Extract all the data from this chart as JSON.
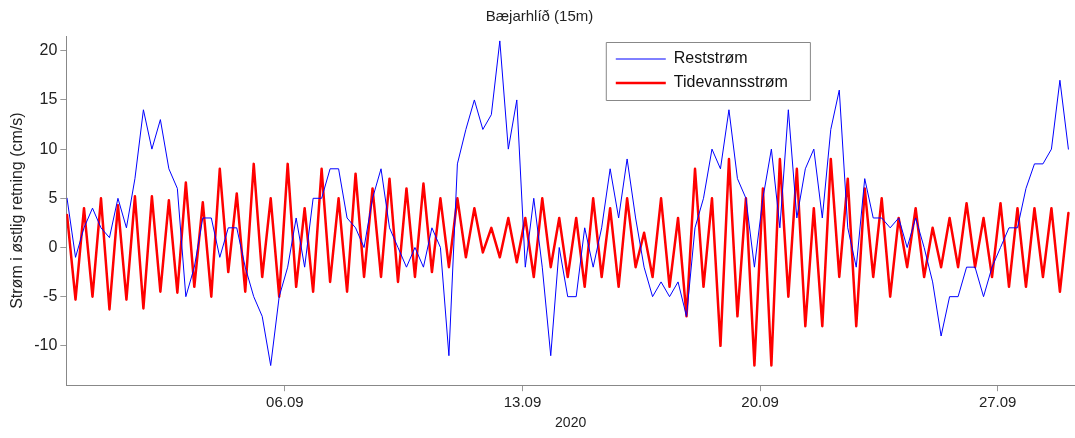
{
  "chart_data": {
    "type": "line",
    "title": "Bæjarhlíð (15m)",
    "xlabel": "2020",
    "ylabel": "Strøm i østlig retning (cm/s)",
    "x": [
      "2020-08-30T14:00",
      "2020-08-30T20:00",
      "2020-08-31T02:00",
      "2020-08-31T08:00",
      "2020-08-31T14:00",
      "2020-08-31T20:00",
      "2020-09-01T02:00",
      "2020-09-01T08:00",
      "2020-09-01T14:00",
      "2020-09-01T20:00",
      "2020-09-02T02:00",
      "2020-09-02T08:00",
      "2020-09-02T14:00",
      "2020-09-02T20:00",
      "2020-09-03T02:00",
      "2020-09-03T08:00",
      "2020-09-03T14:00",
      "2020-09-03T20:00",
      "2020-09-04T02:00",
      "2020-09-04T08:00",
      "2020-09-04T14:00",
      "2020-09-04T20:00",
      "2020-09-05T02:00",
      "2020-09-05T08:00",
      "2020-09-05T14:00",
      "2020-09-05T20:00",
      "2020-09-06T02:00",
      "2020-09-06T08:00",
      "2020-09-06T14:00",
      "2020-09-06T20:00",
      "2020-09-07T02:00",
      "2020-09-07T08:00",
      "2020-09-07T14:00",
      "2020-09-07T20:00",
      "2020-09-08T02:00",
      "2020-09-08T08:00",
      "2020-09-08T14:00",
      "2020-09-08T20:00",
      "2020-09-09T02:00",
      "2020-09-09T08:00",
      "2020-09-09T14:00",
      "2020-09-09T20:00",
      "2020-09-10T02:00",
      "2020-09-10T08:00",
      "2020-09-10T14:00",
      "2020-09-10T20:00",
      "2020-09-11T02:00",
      "2020-09-11T08:00",
      "2020-09-11T14:00",
      "2020-09-11T20:00",
      "2020-09-12T02:00",
      "2020-09-12T08:00",
      "2020-09-12T14:00",
      "2020-09-12T20:00",
      "2020-09-13T02:00",
      "2020-09-13T08:00",
      "2020-09-13T14:00",
      "2020-09-13T20:00",
      "2020-09-14T02:00",
      "2020-09-14T08:00",
      "2020-09-14T14:00",
      "2020-09-14T20:00",
      "2020-09-15T02:00",
      "2020-09-15T08:00",
      "2020-09-15T14:00",
      "2020-09-15T20:00",
      "2020-09-16T02:00",
      "2020-09-16T08:00",
      "2020-09-16T14:00",
      "2020-09-16T20:00",
      "2020-09-17T02:00",
      "2020-09-17T08:00",
      "2020-09-17T14:00",
      "2020-09-17T20:00",
      "2020-09-18T02:00",
      "2020-09-18T08:00",
      "2020-09-18T14:00",
      "2020-09-18T20:00",
      "2020-09-19T02:00",
      "2020-09-19T08:00",
      "2020-09-19T14:00",
      "2020-09-19T20:00",
      "2020-09-20T02:00",
      "2020-09-20T08:00",
      "2020-09-20T14:00",
      "2020-09-20T20:00",
      "2020-09-21T02:00",
      "2020-09-21T08:00",
      "2020-09-21T14:00",
      "2020-09-21T20:00",
      "2020-09-22T02:00",
      "2020-09-22T08:00",
      "2020-09-22T14:00",
      "2020-09-22T20:00",
      "2020-09-23T02:00",
      "2020-09-23T08:00",
      "2020-09-23T14:00",
      "2020-09-23T20:00",
      "2020-09-24T02:00",
      "2020-09-24T08:00",
      "2020-09-24T14:00",
      "2020-09-24T20:00",
      "2020-09-25T02:00",
      "2020-09-25T08:00",
      "2020-09-25T14:00",
      "2020-09-25T20:00",
      "2020-09-26T02:00",
      "2020-09-26T08:00",
      "2020-09-26T14:00",
      "2020-09-26T20:00",
      "2020-09-27T02:00",
      "2020-09-27T08:00",
      "2020-09-27T14:00",
      "2020-09-27T20:00",
      "2020-09-28T02:00",
      "2020-09-28T08:00",
      "2020-09-28T14:00",
      "2020-09-28T20:00",
      "2020-09-29T02:00"
    ],
    "series": [
      {
        "name": "Reststrøm",
        "color": "#0000ff",
        "values": [
          5,
          -1,
          2,
          4,
          2,
          1,
          5,
          2,
          7,
          14,
          10,
          13,
          8,
          6,
          -5,
          -2,
          3,
          3,
          -1,
          2,
          2,
          -2,
          -5,
          -7,
          -12,
          -5,
          -2,
          3,
          -2,
          5,
          5,
          8,
          8,
          3,
          2,
          0,
          5,
          8,
          2,
          0,
          -2,
          0,
          -2,
          2,
          0,
          -11,
          8.5,
          12,
          15,
          12,
          13.5,
          21,
          10,
          15,
          -2,
          5,
          -2,
          -11,
          0,
          -5,
          -5,
          2,
          -2,
          2,
          8,
          3,
          9,
          3,
          -2,
          -5,
          -3.5,
          -5,
          -3.5,
          -7,
          2,
          5,
          10,
          8,
          14,
          7,
          5,
          -2,
          5,
          10,
          2,
          14,
          3,
          8,
          10,
          3,
          12,
          16,
          2,
          -2,
          7,
          3,
          3,
          2,
          3,
          0,
          3,
          0,
          -3.5,
          -9,
          -5,
          -5,
          -2,
          -2,
          -5,
          -2,
          0,
          2,
          2,
          6,
          8.5,
          8.5,
          10,
          17,
          10
        ]
      },
      {
        "name": "Tidevannsstrøm",
        "color": "#ff0000",
        "values": [
          3.3,
          -5.3,
          4,
          -5,
          5,
          -6.3,
          4.3,
          -5.3,
          5.2,
          -6.2,
          5.2,
          -4.5,
          4.8,
          -4.6,
          6.6,
          -4,
          4.6,
          -5,
          8,
          -2.5,
          5.5,
          -4.5,
          8.5,
          -3,
          5,
          -5,
          8.5,
          -4,
          4,
          -4.5,
          8,
          -3.5,
          5,
          -4.5,
          7.5,
          -3,
          6,
          -3,
          7,
          -3.5,
          6,
          -3,
          6.5,
          -2.5,
          5,
          -2,
          5,
          -1,
          4,
          -0.5,
          2,
          -1,
          3,
          -1.5,
          3,
          -3,
          5,
          -2,
          3,
          -3,
          3,
          -4,
          5,
          -3,
          4,
          -4,
          5,
          -2,
          1.5,
          -3,
          5,
          -4,
          3,
          -7,
          8,
          -4,
          5,
          -10,
          9,
          -7,
          5,
          -12,
          6,
          -12,
          9,
          -5,
          8,
          -8,
          4,
          -8,
          9,
          -3,
          7,
          -8,
          6,
          -3,
          5,
          -5,
          3,
          -2,
          4,
          -3,
          2,
          -2,
          3,
          -2,
          4.5,
          -2,
          3,
          -3,
          4.5,
          -4,
          4,
          -4,
          4,
          -3,
          4,
          -4.5,
          3.5
        ]
      }
    ],
    "xlim": [
      "2020-08-30T13:30",
      "2020-09-29T06:40"
    ],
    "xticks": [
      {
        "value": "2020-09-06",
        "label": "06.09"
      },
      {
        "value": "2020-09-13",
        "label": "13.09"
      },
      {
        "value": "2020-09-20",
        "label": "20.09"
      },
      {
        "value": "2020-09-27",
        "label": "27.09"
      }
    ],
    "ylim": [
      -14,
      21.5
    ],
    "yticks": [
      -10,
      -5,
      0,
      5,
      10,
      15,
      20
    ],
    "grid": false,
    "legend": "top"
  }
}
